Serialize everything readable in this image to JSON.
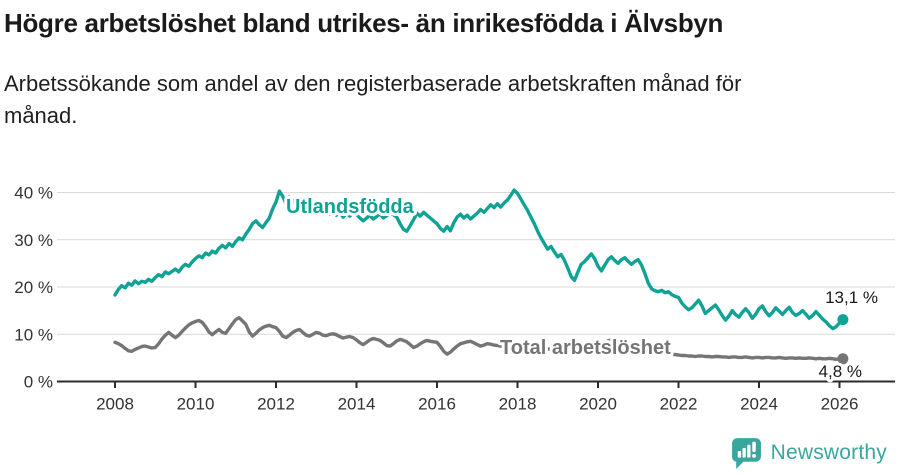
{
  "header": {
    "title": "Högre arbetslöshet bland utrikes- än inrikesfödda i Älvsbyn",
    "subtitle": "Arbetssökande som andel av den registerbaserade arbetskraften månad för\nmånad."
  },
  "chart_data": {
    "type": "line",
    "title": "Högre arbetslöshet bland utrikes- än inrikesfödda i Älvsbyn",
    "xlabel": "",
    "ylabel": "",
    "unit": "%",
    "grid": "horizontal",
    "legend_position": "inline-labels",
    "x_start_year": 2008.0,
    "x_step_years": 0.0833333,
    "x_ticks": [
      2008,
      2010,
      2012,
      2014,
      2016,
      2018,
      2020,
      2022,
      2024,
      2026
    ],
    "y_ticks": [
      0,
      10,
      20,
      30,
      40
    ],
    "y_tick_suffix": " %",
    "ylim": [
      0,
      42
    ],
    "series": [
      {
        "name": "Utlandsfödda",
        "color": "#11a296",
        "end_label": "13,1 %",
        "end_value": 13.1,
        "values": [
          18.3,
          19.5,
          20.3,
          19.8,
          20.8,
          20.4,
          21.3,
          20.7,
          21.2,
          21.0,
          21.6,
          21.2,
          22.0,
          22.6,
          22.2,
          23.2,
          22.8,
          23.3,
          23.8,
          23.2,
          24.2,
          24.8,
          24.4,
          25.3,
          26.0,
          26.6,
          26.2,
          27.2,
          26.8,
          27.6,
          27.2,
          28.2,
          28.8,
          28.3,
          29.2,
          28.6,
          29.6,
          30.4,
          30.0,
          31.2,
          32.2,
          33.4,
          34.0,
          33.2,
          32.6,
          33.6,
          34.6,
          36.5,
          38.0,
          40.3,
          39.2,
          37.6,
          39.0,
          38.3,
          37.2,
          37.8,
          36.6,
          37.3,
          36.4,
          37.0,
          36.2,
          36.8,
          35.8,
          36.4,
          35.4,
          36.0,
          35.2,
          35.8,
          34.8,
          35.6,
          35.0,
          35.8,
          35.4,
          34.6,
          34.0,
          34.6,
          35.2,
          34.4,
          34.9,
          35.5,
          34.6,
          35.1,
          35.8,
          35.3,
          34.8,
          33.4,
          32.2,
          31.8,
          33.0,
          34.2,
          35.6,
          35.0,
          35.8,
          35.2,
          34.6,
          34.0,
          33.4,
          32.4,
          31.8,
          32.8,
          31.9,
          33.6,
          34.8,
          35.4,
          34.6,
          35.2,
          34.4,
          35.0,
          35.6,
          36.4,
          35.8,
          36.6,
          37.4,
          36.8,
          37.6,
          36.9,
          37.8,
          38.4,
          39.4,
          40.5,
          39.8,
          38.6,
          37.4,
          36.2,
          34.8,
          33.4,
          31.8,
          30.4,
          29.2,
          28.0,
          28.6,
          27.4,
          26.4,
          26.9,
          25.6,
          24.0,
          22.2,
          21.4,
          23.2,
          24.8,
          25.4,
          26.2,
          27.0,
          26.0,
          24.4,
          23.4,
          24.6,
          25.8,
          26.4,
          25.6,
          25.0,
          25.8,
          26.2,
          25.4,
          24.8,
          25.4,
          25.8,
          24.6,
          22.8,
          20.8,
          19.6,
          19.2,
          19.0,
          19.3,
          18.8,
          19.0,
          18.4,
          18.0,
          17.8,
          16.6,
          15.8,
          15.2,
          15.6,
          16.4,
          17.2,
          16.0,
          14.4,
          15.0,
          15.6,
          16.2,
          15.2,
          14.0,
          13.0,
          13.8,
          15.0,
          14.2,
          13.6,
          14.6,
          15.4,
          14.6,
          13.4,
          14.2,
          15.4,
          16.0,
          14.8,
          13.9,
          14.6,
          15.6,
          14.9,
          14.2,
          15.0,
          15.7,
          14.6,
          14.0,
          14.4,
          15.0,
          14.2,
          13.4,
          14.0,
          14.8,
          14.0,
          13.2,
          12.6,
          11.8,
          11.2,
          11.6,
          12.4,
          13.1
        ]
      },
      {
        "name": "Total arbetslöshet",
        "color": "#757575",
        "end_label": "4,8 %",
        "end_value": 4.8,
        "values": [
          8.3,
          8.0,
          7.6,
          7.0,
          6.5,
          6.4,
          6.8,
          7.1,
          7.4,
          7.5,
          7.3,
          7.1,
          7.2,
          8.0,
          9.0,
          9.8,
          10.4,
          9.8,
          9.3,
          9.8,
          10.6,
          11.3,
          12.0,
          12.4,
          12.7,
          12.9,
          12.5,
          11.6,
          10.5,
          9.9,
          10.5,
          11.0,
          10.4,
          10.2,
          11.2,
          12.2,
          13.1,
          13.5,
          12.8,
          12.1,
          10.5,
          9.6,
          10.2,
          10.9,
          11.4,
          11.7,
          11.9,
          11.6,
          11.4,
          10.6,
          9.6,
          9.3,
          9.8,
          10.4,
          10.8,
          11.0,
          10.4,
          9.8,
          9.6,
          10.0,
          10.4,
          10.2,
          9.8,
          9.7,
          10.0,
          10.1,
          9.9,
          9.5,
          9.2,
          9.4,
          9.5,
          9.3,
          8.8,
          8.2,
          7.8,
          8.3,
          8.8,
          9.1,
          8.9,
          8.7,
          8.2,
          7.6,
          7.5,
          8.0,
          8.6,
          8.9,
          8.7,
          8.4,
          7.8,
          7.2,
          7.5,
          8.0,
          8.4,
          8.7,
          8.5,
          8.4,
          8.3,
          7.4,
          6.4,
          5.8,
          6.2,
          6.9,
          7.5,
          8.0,
          8.2,
          8.4,
          8.5,
          8.2,
          7.8,
          7.5,
          7.7,
          8.0,
          7.9,
          7.7,
          7.6,
          7.5,
          7.4,
          7.3,
          7.2,
          7.3,
          7.4,
          7.3,
          7.1,
          7.0,
          6.9,
          6.8,
          6.9,
          7.0,
          7.0,
          6.9,
          6.8,
          6.9,
          7.0,
          7.1,
          7.0,
          6.9,
          6.8,
          6.8,
          6.9,
          7.0,
          7.1,
          7.2,
          7.3,
          7.4,
          7.6,
          7.8,
          8.2,
          8.6,
          8.8,
          8.7,
          8.5,
          8.3,
          8.1,
          7.9,
          7.7,
          7.5,
          7.3,
          7.1,
          6.9,
          6.7,
          6.5,
          6.3,
          6.2,
          6.1,
          6.0,
          5.9,
          5.8,
          5.7,
          5.6,
          5.5,
          5.5,
          5.4,
          5.4,
          5.3,
          5.4,
          5.4,
          5.3,
          5.3,
          5.2,
          5.3,
          5.3,
          5.2,
          5.2,
          5.1,
          5.2,
          5.2,
          5.1,
          5.1,
          5.2,
          5.1,
          5.0,
          5.1,
          5.1,
          5.0,
          5.1,
          5.1,
          5.0,
          5.0,
          5.1,
          5.0,
          4.9,
          5.0,
          5.0,
          4.9,
          5.0,
          4.9,
          4.9,
          5.0,
          4.9,
          4.8,
          4.9,
          4.8,
          4.8,
          4.9,
          4.8,
          4.7,
          4.8,
          4.8
        ]
      }
    ],
    "colors": {
      "accent_teal": "#11a296",
      "series_gray": "#757575",
      "grid": "#d9d9d9",
      "axis": "#2b2b2b",
      "tick_text": "#333333",
      "annotation_text": "#1a1a1a"
    }
  },
  "footer": {
    "brand": "Newsworthy",
    "brand_color": "#3aa79d",
    "logo_icon": "speech-bubble-bar-chart-icon"
  }
}
